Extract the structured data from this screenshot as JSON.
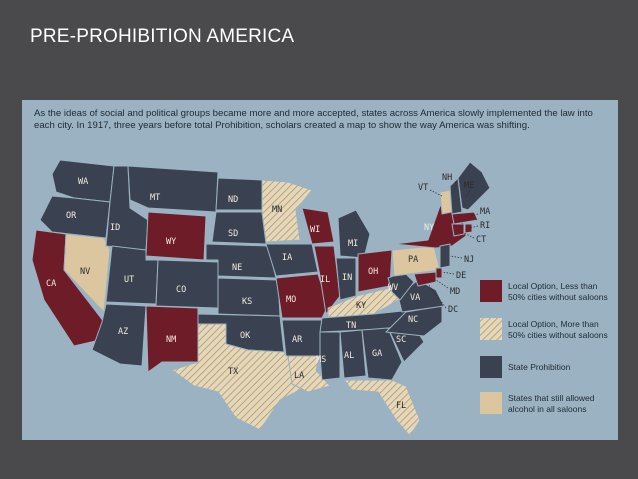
{
  "slide": {
    "title": "PRE-PROHIBITION AMERICA"
  },
  "map": {
    "caption": "As the ideas of social and political groups became more and more accepted, states across America slowly implemented the law into each city. In 1917, three years before total Prohibition, scholars created a map to show the way America was shifting.",
    "colors": {
      "background": "#9ab2c2",
      "local_less_50": "#6e1c27",
      "local_more_50": "#e6d7b8",
      "state_prohibition": "#3a4150",
      "all_saloons": "#dcc6a0"
    },
    "legend": [
      {
        "category": "local_less_50",
        "label_line1": "Local Option, Less than",
        "label_line2": "50% cities without saloons"
      },
      {
        "category": "local_more_50",
        "label_line1": "Local Option, More than",
        "label_line2": "50% cities without saloons"
      },
      {
        "category": "state_prohibition",
        "label_line1": "State Prohibition",
        "label_line2": ""
      },
      {
        "category": "all_saloons",
        "label_line1": "States that still allowed",
        "label_line2": "alcohol in all saloons"
      }
    ],
    "states": {
      "WA": "WA",
      "OR": "OR",
      "CA": "CA",
      "ID": "ID",
      "NV": "NV",
      "MT": "MT",
      "WY": "WY",
      "UT": "UT",
      "AZ": "AZ",
      "CO": "CO",
      "NM": "NM",
      "ND": "ND",
      "SD": "SD",
      "NE": "NE",
      "KS": "KS",
      "OK": "OK",
      "TX": "TX",
      "MN": "MN",
      "IA": "IA",
      "MO": "MO",
      "AR": "AR",
      "LA": "LA",
      "WI": "WI",
      "IL": "IL",
      "MI": "MI",
      "IN": "IN",
      "OH": "OH",
      "KY": "KY",
      "TN": "TN",
      "MS": "MS",
      "AL": "AL",
      "GA": "GA",
      "FL": "FL",
      "SC": "SC",
      "NC": "NC",
      "VA": "VA",
      "WV": "WV",
      "PA": "PA",
      "NY": "NY",
      "VT": "VT",
      "NH": "NH",
      "ME": "ME",
      "MA": "MA",
      "RI": "RI",
      "CT": "CT",
      "NJ": "NJ",
      "DE": "DE",
      "MD": "MD",
      "DC": "DC"
    }
  }
}
